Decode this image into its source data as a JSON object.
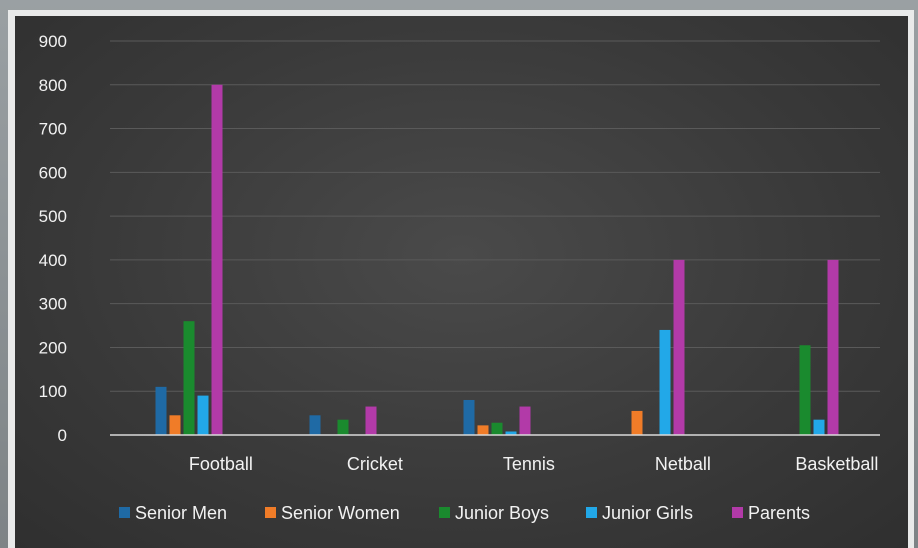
{
  "chart_data": {
    "type": "bar",
    "categories": [
      "Football",
      "Cricket",
      "Tennis",
      "Netball",
      "Basketball"
    ],
    "series": [
      {
        "name": "Senior Men",
        "color": "#1f6aa5",
        "values": [
          110,
          45,
          80,
          0,
          0
        ]
      },
      {
        "name": "Senior Women",
        "color": "#f07c28",
        "values": [
          45,
          0,
          22,
          55,
          0
        ]
      },
      {
        "name": "Junior Boys",
        "color": "#1a8a2e",
        "values": [
          260,
          35,
          28,
          0,
          205
        ]
      },
      {
        "name": "Junior Girls",
        "color": "#22a8e8",
        "values": [
          90,
          0,
          8,
          240,
          35
        ]
      },
      {
        "name": "Parents",
        "color": "#b23aa8",
        "values": [
          800,
          65,
          65,
          400,
          400
        ]
      }
    ],
    "ylim": [
      0,
      900
    ],
    "yticks": [
      0,
      100,
      200,
      300,
      400,
      500,
      600,
      700,
      800,
      900
    ],
    "grid": true,
    "legend": "bottom"
  }
}
